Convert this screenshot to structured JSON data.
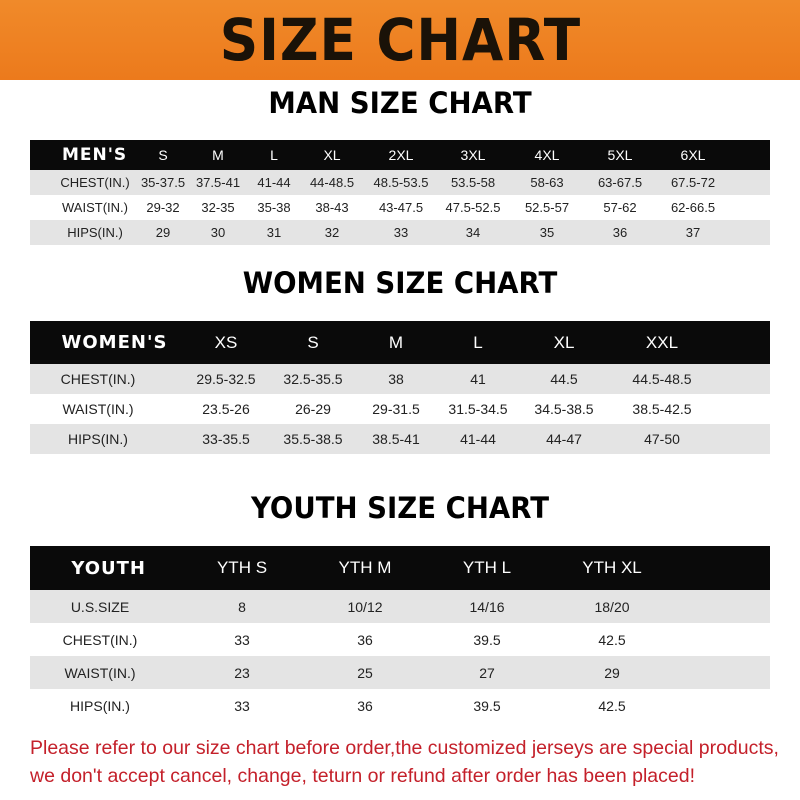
{
  "banner_title": "SIZE CHART",
  "men": {
    "title": "MAN SIZE CHART",
    "corner": "MEN'S",
    "sizes": [
      "S",
      "M",
      "L",
      "XL",
      "2XL",
      "3XL",
      "4XL",
      "5XL",
      "6XL"
    ],
    "rows": [
      {
        "label": "CHEST(IN.)",
        "values": [
          "35-37.5",
          "37.5-41",
          "41-44",
          "44-48.5",
          "48.5-53.5",
          "53.5-58",
          "58-63",
          "63-67.5",
          "67.5-72"
        ]
      },
      {
        "label": "WAIST(IN.)",
        "values": [
          "29-32",
          "32-35",
          "35-38",
          "38-43",
          "43-47.5",
          "47.5-52.5",
          "52.5-57",
          "57-62",
          "62-66.5"
        ]
      },
      {
        "label": "HIPS(IN.)",
        "values": [
          "29",
          "30",
          "31",
          "32",
          "33",
          "34",
          "35",
          "36",
          "37"
        ]
      }
    ]
  },
  "women": {
    "title": "WOMEN SIZE CHART",
    "corner": "WOMEN'S",
    "sizes": [
      "XS",
      "S",
      "M",
      "L",
      "XL",
      "XXL"
    ],
    "rows": [
      {
        "label": "CHEST(IN.)",
        "values": [
          "29.5-32.5",
          "32.5-35.5",
          "38",
          "41",
          "44.5",
          "44.5-48.5"
        ]
      },
      {
        "label": "WAIST(IN.)",
        "values": [
          "23.5-26",
          "26-29",
          "29-31.5",
          "31.5-34.5",
          "34.5-38.5",
          "38.5-42.5"
        ]
      },
      {
        "label": "HIPS(IN.)",
        "values": [
          "33-35.5",
          "35.5-38.5",
          "38.5-41",
          "41-44",
          "44-47",
          "47-50"
        ]
      }
    ]
  },
  "youth": {
    "title": "YOUTH SIZE CHART",
    "corner": "YOUTH",
    "sizes": [
      "YTH S",
      "YTH M",
      "YTH L",
      "YTH XL"
    ],
    "rows": [
      {
        "label": "U.S.SIZE",
        "values": [
          "8",
          "10/12",
          "14/16",
          "18/20"
        ]
      },
      {
        "label": "CHEST(IN.)",
        "values": [
          "33",
          "36",
          "39.5",
          "42.5"
        ]
      },
      {
        "label": "WAIST(IN.)",
        "values": [
          "23",
          "25",
          "27",
          "29"
        ]
      },
      {
        "label": "HIPS(IN.)",
        "values": [
          "33",
          "36",
          "39.5",
          "42.5"
        ]
      }
    ]
  },
  "footer": {
    "line1": "Please refer to our size chart before order,the customized jerseys are special products,",
    "line2": "we don't accept cancel, change, teturn or refund after order has been placed!"
  },
  "colors": {
    "banner": "#ee8022",
    "header_row": "#0a0a0a",
    "stripe": "#e4e4e4",
    "notice": "#c4202a"
  }
}
